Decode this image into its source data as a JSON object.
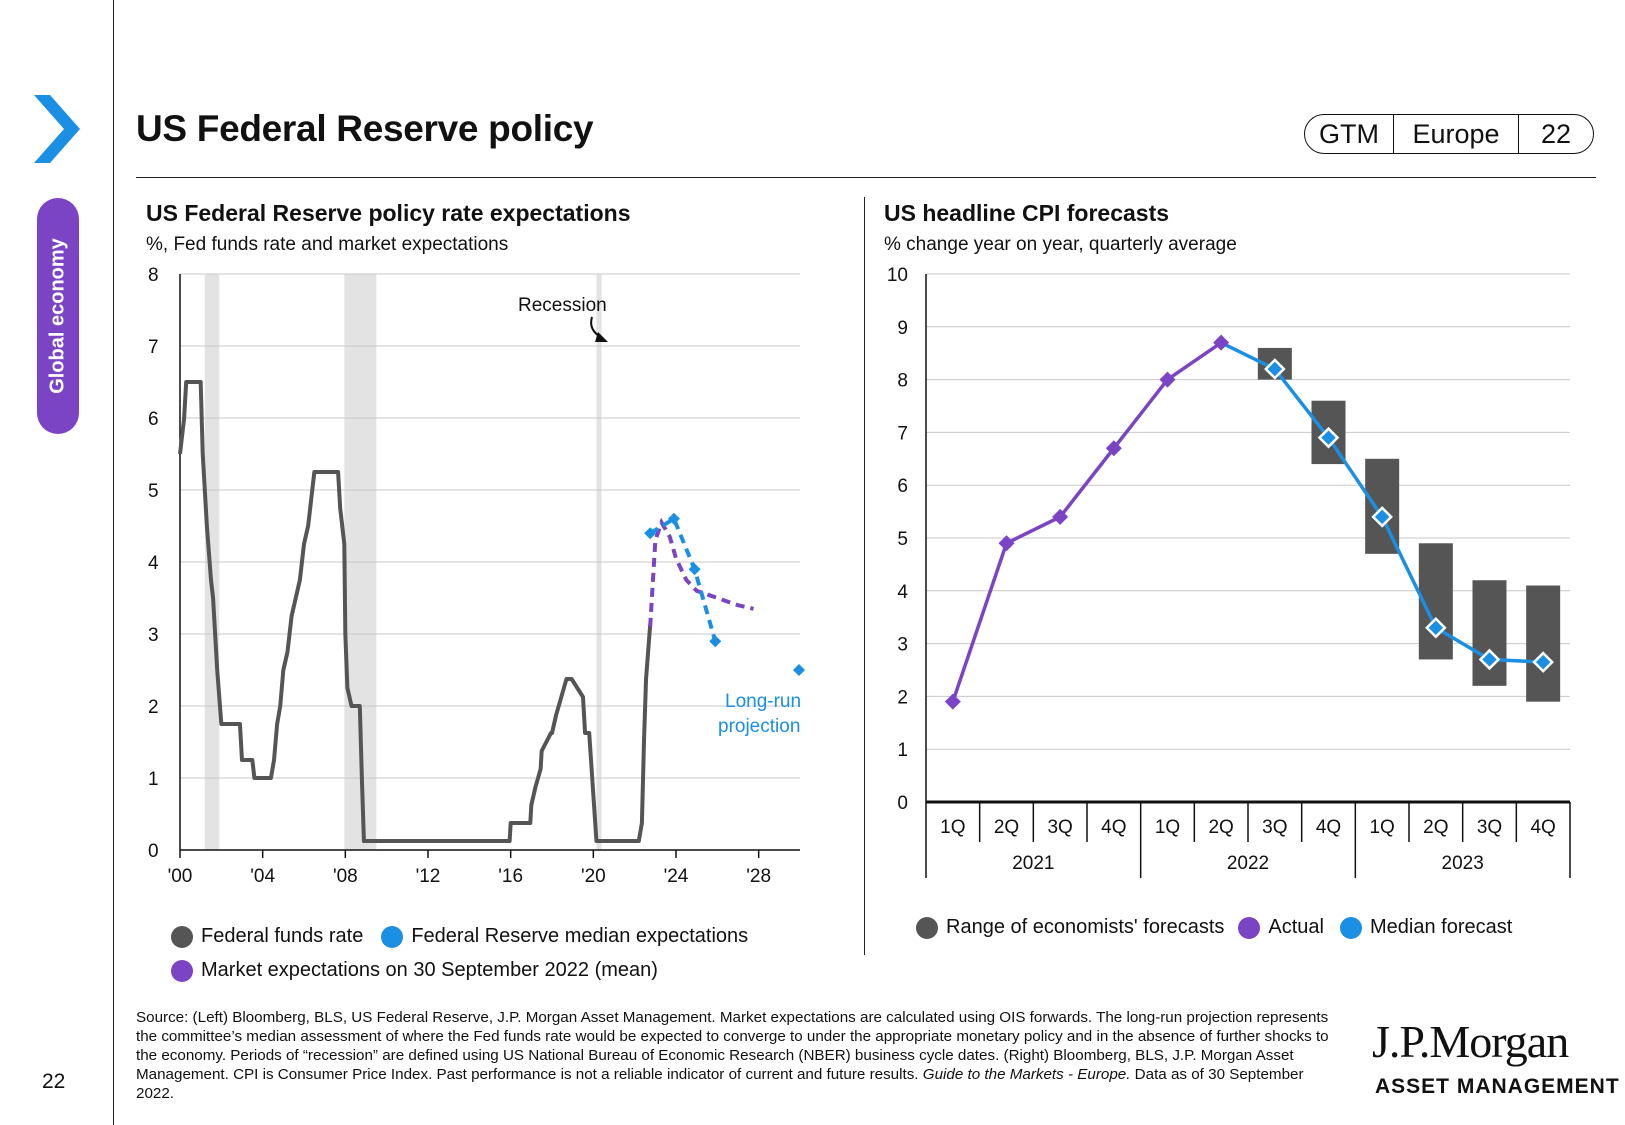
{
  "sidebar": {
    "section_label": "Global economy",
    "page_number": "22"
  },
  "header": {
    "title": "US Federal Reserve policy",
    "badge": {
      "guide": "GTM",
      "region": "Europe",
      "page": "22"
    }
  },
  "colors": {
    "grey": "#555555",
    "purple": "#7a44c4",
    "blue": "#1a8fe3",
    "recession": "#e3e3e3"
  },
  "chart_data": [
    {
      "type": "line",
      "title": "US Federal Reserve policy rate expectations",
      "subtitle": "%, Fed funds rate and market expectations",
      "xlim": [
        2000,
        2030
      ],
      "ylim": [
        0,
        8
      ],
      "y_ticks": [
        "0",
        "1",
        "2",
        "3",
        "4",
        "5",
        "6",
        "7",
        "8"
      ],
      "x_ticks": [
        {
          "x": 2000,
          "label": "'00"
        },
        {
          "x": 2004,
          "label": "'04"
        },
        {
          "x": 2008,
          "label": "'08"
        },
        {
          "x": 2012,
          "label": "'12"
        },
        {
          "x": 2016,
          "label": "'16"
        },
        {
          "x": 2020,
          "label": "'20"
        },
        {
          "x": 2024,
          "label": "'24"
        },
        {
          "x": 2028,
          "label": "'28"
        }
      ],
      "grid": true,
      "recessions": [
        [
          2001.2,
          2001.9
        ],
        [
          2007.95,
          2009.5
        ],
        [
          2020.15,
          2020.4
        ]
      ],
      "annotations": {
        "recession": "Recession",
        "long_run_1": "Long-run",
        "long_run_2": "projection"
      },
      "series": [
        {
          "name": "Federal funds rate",
          "color": "#555555",
          "x": [
            2000.0,
            2000.2,
            2000.3,
            2000.4,
            2001.0,
            2001.1,
            2001.3,
            2001.5,
            2001.6,
            2001.8,
            2002.0,
            2002.9,
            2003.0,
            2003.5,
            2003.6,
            2004.4,
            2004.55,
            2004.7,
            2004.85,
            2005.0,
            2005.2,
            2005.4,
            2005.6,
            2005.8,
            2006.0,
            2006.2,
            2006.4,
            2006.5,
            2007.65,
            2007.75,
            2007.85,
            2007.95,
            2008.0,
            2008.1,
            2008.3,
            2008.7,
            2008.8,
            2008.9,
            2015.95,
            2016.0,
            2016.95,
            2017.0,
            2017.2,
            2017.45,
            2017.5,
            2017.95,
            2018.0,
            2018.2,
            2018.45,
            2018.7,
            2018.95,
            2019.5,
            2019.6,
            2019.8,
            2020.15,
            2020.2,
            2022.2,
            2022.35,
            2022.45,
            2022.55,
            2022.75
          ],
          "y": [
            5.5,
            6.0,
            6.5,
            6.5,
            6.5,
            5.5,
            4.5,
            3.75,
            3.5,
            2.5,
            1.75,
            1.75,
            1.25,
            1.25,
            1.0,
            1.0,
            1.25,
            1.75,
            2.0,
            2.5,
            2.75,
            3.25,
            3.5,
            3.75,
            4.25,
            4.5,
            5.0,
            5.25,
            5.25,
            4.75,
            4.5,
            4.25,
            3.0,
            2.25,
            2.0,
            2.0,
            1.0,
            0.125,
            0.125,
            0.375,
            0.375,
            0.625,
            0.875,
            1.125,
            1.375,
            1.625,
            1.625,
            1.875,
            2.125,
            2.375,
            2.375,
            2.125,
            1.625,
            1.625,
            0.125,
            0.125,
            0.125,
            0.375,
            1.5,
            2.375,
            3.125
          ]
        },
        {
          "name": "Federal Reserve median expectations",
          "color": "#1a8fe3",
          "x": [
            2022.75,
            2023.9,
            2024.9,
            2025.9
          ],
          "y": [
            4.4,
            4.6,
            3.9,
            2.9
          ],
          "long_run": {
            "x": 2030,
            "y": 2.5
          }
        },
        {
          "name": "Market expectations on 30 September 2022 (mean)",
          "color": "#7a44c4",
          "x": [
            2022.75,
            2023.0,
            2023.3,
            2023.7,
            2024.0,
            2024.5,
            2025.0,
            2026.0,
            2027.0,
            2027.75
          ],
          "y": [
            3.1,
            4.3,
            4.55,
            4.35,
            4.05,
            3.75,
            3.6,
            3.5,
            3.4,
            3.35
          ]
        }
      ],
      "legend": [
        {
          "label": "Federal funds rate",
          "color": "#555555"
        },
        {
          "label": "Federal Reserve median expectations",
          "color": "#1a8fe3"
        },
        {
          "label": "Market expectations on 30 September 2022 (mean)",
          "color": "#7a44c4"
        }
      ]
    },
    {
      "type": "line",
      "title": "US headline CPI forecasts",
      "subtitle": "% change year on year, quarterly average",
      "ylim": [
        0,
        10
      ],
      "y_ticks": [
        "0",
        "1",
        "2",
        "3",
        "4",
        "5",
        "6",
        "7",
        "8",
        "9",
        "10"
      ],
      "grid": true,
      "categories": [
        "1Q",
        "2Q",
        "3Q",
        "4Q",
        "1Q",
        "2Q",
        "3Q",
        "4Q",
        "1Q",
        "2Q",
        "3Q",
        "4Q"
      ],
      "year_groups": [
        "2021",
        "2022",
        "2023"
      ],
      "actual": [
        1.9,
        4.9,
        5.4,
        6.7,
        8.0,
        8.7
      ],
      "median": [
        null,
        null,
        null,
        null,
        null,
        8.7,
        8.2,
        6.9,
        5.4,
        3.3,
        2.7,
        2.65
      ],
      "ranges": [
        null,
        null,
        null,
        null,
        null,
        null,
        [
          8.0,
          8.6
        ],
        [
          6.4,
          7.6
        ],
        [
          4.7,
          6.5
        ],
        [
          2.7,
          4.9
        ],
        [
          2.2,
          4.2
        ],
        [
          1.9,
          4.1
        ]
      ],
      "legend": [
        {
          "label": "Range of economists' forecasts",
          "color": "#555555"
        },
        {
          "label": "Actual",
          "color": "#7a44c4"
        },
        {
          "label": "Median forecast",
          "color": "#1a8fe3"
        }
      ]
    }
  ],
  "footer": {
    "source_text": "Source: (Left) Bloomberg, BLS, US Federal Reserve, J.P. Morgan Asset Management. Market expectations are calculated using OIS forwards. The long-run projection represents the committee’s median assessment of where the Fed funds rate would be expected to converge to under the appropriate monetary policy and in the absence of further shocks to the economy. Periods of “recession” are defined using US National Bureau of Economic Research (NBER) business cycle dates. (Right) Bloomberg, BLS, J.P. Morgan Asset Management. CPI is Consumer Price Index. Past performance is not a reliable indicator of current and future results.",
    "guide_name": "Guide to the Markets - Europe.",
    "data_date": "Data as of 30 September 2022."
  },
  "logo": {
    "line1": "J.P.Morgan",
    "line2": "ASSET MANAGEMENT"
  }
}
